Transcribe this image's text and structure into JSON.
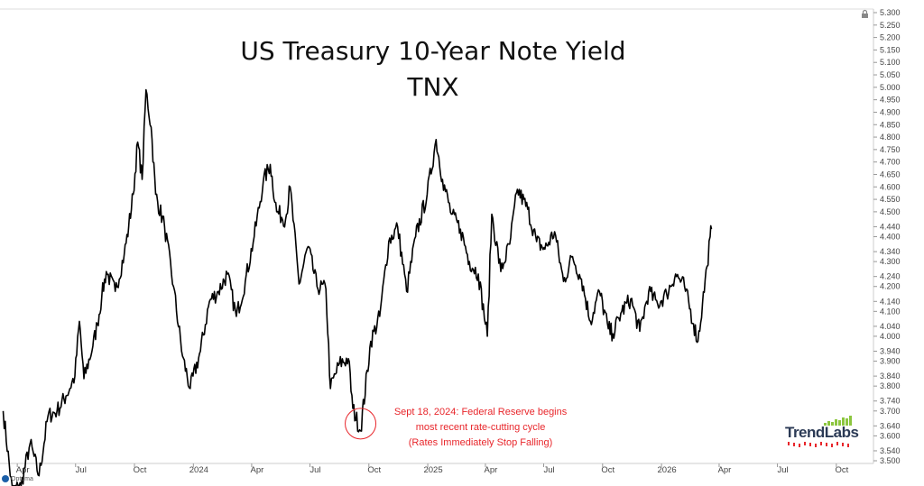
{
  "chart_data": {
    "type": "line",
    "title": "US Treasury 10-Year Note Yield",
    "subtitle": "TNX",
    "xlabel": "",
    "ylabel": "",
    "ylim": [
      3.5,
      5.3
    ],
    "grid": false,
    "legend": "none",
    "y_ticks": [
      "5.300",
      "5.250",
      "5.200",
      "5.150",
      "5.100",
      "5.050",
      "5.000",
      "4.950",
      "4.900",
      "4.850",
      "4.800",
      "4.750",
      "4.700",
      "4.650",
      "4.600",
      "4.550",
      "4.500",
      "4.440",
      "4.400",
      "4.340",
      "4.300",
      "4.240",
      "4.200",
      "4.140",
      "4.100",
      "4.040",
      "4.000",
      "3.940",
      "3.900",
      "3.840",
      "3.800",
      "3.740",
      "3.700",
      "3.640",
      "3.600",
      "3.540",
      "3.500"
    ],
    "x_ticks": [
      {
        "label": "Apr",
        "date": "2023-04-01"
      },
      {
        "label": "Jul",
        "date": "2023-07-01"
      },
      {
        "label": "Oct",
        "date": "2023-10-01"
      },
      {
        "label": "2024",
        "date": "2024-01-01"
      },
      {
        "label": "Apr",
        "date": "2024-04-01"
      },
      {
        "label": "Jul",
        "date": "2024-07-01"
      },
      {
        "label": "Oct",
        "date": "2024-10-01"
      },
      {
        "label": "2025",
        "date": "2025-01-01"
      },
      {
        "label": "Apr",
        "date": "2025-04-01"
      },
      {
        "label": "Jul",
        "date": "2025-07-01"
      },
      {
        "label": "Oct",
        "date": "2025-10-01"
      },
      {
        "label": "2026",
        "date": "2026-01-01"
      },
      {
        "label": "Apr",
        "date": "2026-04-01"
      },
      {
        "label": "Jul",
        "date": "2026-07-01"
      },
      {
        "label": "Oct",
        "date": "2026-10-01"
      }
    ],
    "series": [
      {
        "color": "#000000",
        "points": [
          [
            "2023-03-10",
            3.7
          ],
          [
            "2023-03-24",
            3.38
          ],
          [
            "2023-04-07",
            3.4
          ],
          [
            "2023-04-21",
            3.57
          ],
          [
            "2023-05-05",
            3.44
          ],
          [
            "2023-05-19",
            3.68
          ],
          [
            "2023-06-02",
            3.7
          ],
          [
            "2023-06-16",
            3.76
          ],
          [
            "2023-06-30",
            3.84
          ],
          [
            "2023-07-07",
            4.06
          ],
          [
            "2023-07-14",
            3.83
          ],
          [
            "2023-07-28",
            3.96
          ],
          [
            "2023-08-04",
            4.05
          ],
          [
            "2023-08-11",
            4.16
          ],
          [
            "2023-08-18",
            4.26
          ],
          [
            "2023-09-01",
            4.18
          ],
          [
            "2023-09-15",
            4.33
          ],
          [
            "2023-09-22",
            4.44
          ],
          [
            "2023-09-29",
            4.57
          ],
          [
            "2023-10-06",
            4.78
          ],
          [
            "2023-10-13",
            4.63
          ],
          [
            "2023-10-19",
            4.99
          ],
          [
            "2023-10-27",
            4.84
          ],
          [
            "2023-11-03",
            4.57
          ],
          [
            "2023-11-17",
            4.44
          ],
          [
            "2023-12-01",
            4.2
          ],
          [
            "2023-12-15",
            3.92
          ],
          [
            "2023-12-27",
            3.79
          ],
          [
            "2024-01-12",
            3.94
          ],
          [
            "2024-01-26",
            4.14
          ],
          [
            "2024-02-09",
            4.18
          ],
          [
            "2024-02-23",
            4.25
          ],
          [
            "2024-03-08",
            4.08
          ],
          [
            "2024-03-22",
            4.22
          ],
          [
            "2024-04-05",
            4.4
          ],
          [
            "2024-04-19",
            4.62
          ],
          [
            "2024-04-30",
            4.69
          ],
          [
            "2024-05-10",
            4.5
          ],
          [
            "2024-05-24",
            4.47
          ],
          [
            "2024-05-31",
            4.6
          ],
          [
            "2024-06-14",
            4.21
          ],
          [
            "2024-06-28",
            4.36
          ],
          [
            "2024-07-12",
            4.2
          ],
          [
            "2024-07-26",
            4.19
          ],
          [
            "2024-08-02",
            3.79
          ],
          [
            "2024-08-16",
            3.89
          ],
          [
            "2024-08-30",
            3.91
          ],
          [
            "2024-09-06",
            3.71
          ],
          [
            "2024-09-18",
            3.62
          ],
          [
            "2024-10-04",
            3.98
          ],
          [
            "2024-10-18",
            4.08
          ],
          [
            "2024-11-01",
            4.38
          ],
          [
            "2024-11-15",
            4.44
          ],
          [
            "2024-11-29",
            4.18
          ],
          [
            "2024-12-13",
            4.4
          ],
          [
            "2024-12-31",
            4.57
          ],
          [
            "2025-01-14",
            4.79
          ],
          [
            "2025-01-24",
            4.63
          ],
          [
            "2025-02-07",
            4.49
          ],
          [
            "2025-02-21",
            4.43
          ],
          [
            "2025-03-07",
            4.3
          ],
          [
            "2025-03-21",
            4.25
          ],
          [
            "2025-04-04",
            4.0
          ],
          [
            "2025-04-11",
            4.49
          ],
          [
            "2025-04-25",
            4.26
          ],
          [
            "2025-05-09",
            4.37
          ],
          [
            "2025-05-21",
            4.59
          ],
          [
            "2025-06-06",
            4.51
          ],
          [
            "2025-06-20",
            4.38
          ],
          [
            "2025-07-03",
            4.35
          ],
          [
            "2025-07-18",
            4.42
          ],
          [
            "2025-08-01",
            4.22
          ],
          [
            "2025-08-15",
            4.32
          ],
          [
            "2025-08-29",
            4.23
          ],
          [
            "2025-09-12",
            4.06
          ],
          [
            "2025-09-26",
            4.18
          ],
          [
            "2025-10-10",
            4.03
          ],
          [
            "2025-10-17",
            4.01
          ],
          [
            "2025-10-31",
            4.1
          ],
          [
            "2025-11-14",
            4.15
          ],
          [
            "2025-11-28",
            4.02
          ],
          [
            "2025-12-12",
            4.18
          ],
          [
            "2025-12-26",
            4.13
          ],
          [
            "2026-01-09",
            4.17
          ],
          [
            "2026-01-23",
            4.25
          ],
          [
            "2026-02-06",
            4.2
          ],
          [
            "2026-02-20",
            4.05
          ],
          [
            "2026-02-27",
            3.98
          ],
          [
            "2026-03-06",
            4.13
          ],
          [
            "2026-03-13",
            4.28
          ],
          [
            "2026-03-18",
            4.4
          ],
          [
            "2026-03-20",
            4.43
          ]
        ]
      }
    ],
    "annotations": [
      {
        "date": "2024-09-18",
        "value": 3.62,
        "lines": [
          "Sept 18, 2024: Federal Reserve begins",
          "most recent rate-cutting cycle",
          "(Rates Immediately Stop Falling)"
        ],
        "color": "#e8262b"
      }
    ],
    "logo": {
      "text": "TrendLabs",
      "bar_color": "#8cc63f",
      "accent_color": "#e8262b"
    }
  },
  "footer": {
    "brand": "Optuma"
  }
}
